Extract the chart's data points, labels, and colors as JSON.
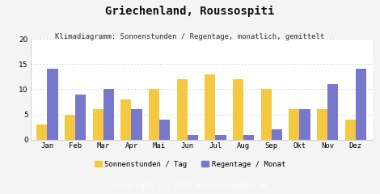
{
  "title": "Griechenland, Roussospiti",
  "subtitle": "Klimadiagramm: Sonnenstunden / Regentage, monatlich, gemittelt",
  "copyright": "Copyright (C) 2010 sonnenlaender.de",
  "months": [
    "Jan",
    "Feb",
    "Mar",
    "Apr",
    "Mai",
    "Jun",
    "Jul",
    "Aug",
    "Sep",
    "Okt",
    "Nov",
    "Dez"
  ],
  "sonnenstunden": [
    3,
    5,
    6,
    8,
    10,
    12,
    13,
    12,
    10,
    6,
    6,
    4
  ],
  "regentage": [
    14,
    9,
    10,
    6,
    4,
    1,
    1,
    1,
    2,
    6,
    11,
    14
  ],
  "bar_color_sonnen": "#F5C842",
  "bar_color_regen": "#7777CC",
  "ylim": [
    0,
    20
  ],
  "yticks": [
    0,
    5,
    10,
    15,
    20
  ],
  "legend_sonnen": "Sonnenstunden / Tag",
  "legend_regen": "Regentage / Monat",
  "bg_color": "#f4f4f4",
  "plot_bg_color": "#ffffff",
  "footer_bg": "#aaaaaa",
  "title_fontsize": 10,
  "subtitle_fontsize": 6.5,
  "axis_fontsize": 6.5,
  "legend_fontsize": 6.5,
  "copyright_fontsize": 6.5
}
